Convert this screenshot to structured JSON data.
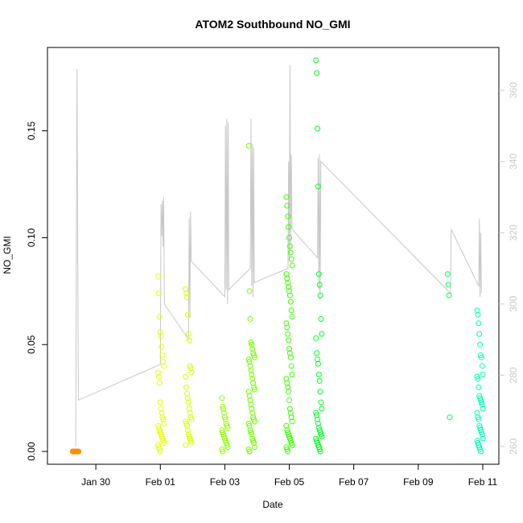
{
  "chart_data": {
    "type": "scatter",
    "title": "ATOM2 Southbound NO_GMI",
    "xlabel": "Date",
    "ylabel": "NO_GMI",
    "x_axis": {
      "type": "date",
      "xlim": [
        "2017-01-28T12:00",
        "2017-02-11T12:00"
      ],
      "ticks": [
        {
          "value": "2017-01-30",
          "label": "Jan 30"
        },
        {
          "value": "2017-02-01",
          "label": "Feb 01"
        },
        {
          "value": "2017-02-03",
          "label": "Feb 03"
        },
        {
          "value": "2017-02-05",
          "label": "Feb 05"
        },
        {
          "value": "2017-02-07",
          "label": "Feb 07"
        },
        {
          "value": "2017-02-09",
          "label": "Feb 09"
        },
        {
          "value": "2017-02-11",
          "label": "Feb 11"
        }
      ]
    },
    "y_axis": {
      "ylim": [
        -0.006,
        0.189
      ],
      "ticks": [
        {
          "value": 0.0,
          "label": "0.00"
        },
        {
          "value": 0.05,
          "label": "0.05"
        },
        {
          "value": 0.1,
          "label": "0.10"
        },
        {
          "value": 0.15,
          "label": "0.15"
        }
      ]
    },
    "y2_axis": {
      "ylim": [
        255,
        372
      ],
      "color": "#c8c8c8",
      "ticks": [
        {
          "value": 260,
          "label": "260"
        },
        {
          "value": 280,
          "label": "280"
        },
        {
          "value": 300,
          "label": "300"
        },
        {
          "value": 320,
          "label": "320"
        },
        {
          "value": 340,
          "label": "340"
        },
        {
          "value": 360,
          "label": "360"
        }
      ]
    },
    "grid": false,
    "legend": "none",
    "colors": {
      "line": "#c8c8c8",
      "axis": "#000000",
      "points_gradient": [
        "#ff8c00",
        "#f0ff00",
        "#3cff00",
        "#00ff3c",
        "#00ffc8"
      ]
    },
    "series": [
      {
        "kind": "points",
        "clusters": [
          {
            "x": "2017-01-29T09:00",
            "color": "#ff8c00",
            "y": [
              0.0,
              0.0,
              0.0,
              0.0,
              0.0,
              0.0,
              0.0,
              0.0,
              0.0,
              0.0
            ]
          },
          {
            "x": "2017-02-01T00:30",
            "color": "#e8ff00",
            "y": [
              0.082,
              0.074,
              0.063,
              0.056,
              0.054,
              0.049,
              0.045,
              0.042,
              0.04,
              0.037,
              0.035,
              0.032,
              0.023,
              0.02,
              0.018,
              0.016,
              0.015,
              0.013,
              0.012,
              0.011,
              0.01,
              0.009,
              0.008,
              0.007,
              0.006,
              0.005,
              0.004,
              0.003,
              0.002,
              0.001,
              0.0
            ]
          },
          {
            "x": "2017-02-01T21:00",
            "color": "#d8ff00",
            "y": [
              0.076,
              0.074,
              0.072,
              0.064,
              0.055,
              0.052,
              0.04,
              0.039,
              0.037,
              0.035,
              0.03,
              0.027,
              0.025,
              0.023,
              0.02,
              0.018,
              0.016,
              0.015,
              0.014,
              0.013,
              0.012,
              0.01,
              0.008,
              0.007,
              0.006,
              0.005,
              0.004,
              0.003
            ]
          },
          {
            "x": "2017-02-03T00:00",
            "color": "#90ff00",
            "y": [
              0.025,
              0.021,
              0.02,
              0.018,
              0.016,
              0.015,
              0.013,
              0.012,
              0.011,
              0.01,
              0.009,
              0.008,
              0.007,
              0.006,
              0.005,
              0.004,
              0.003,
              0.002,
              0.001,
              0.0
            ]
          },
          {
            "x": "2017-02-03T20:00",
            "color": "#70ff00",
            "y": [
              0.143,
              0.075,
              0.062,
              0.051,
              0.05,
              0.048,
              0.046,
              0.045,
              0.044,
              0.043,
              0.042,
              0.04,
              0.038,
              0.036,
              0.034,
              0.032,
              0.03,
              0.029,
              0.028,
              0.026,
              0.024,
              0.022,
              0.02,
              0.018,
              0.016,
              0.015,
              0.014,
              0.013,
              0.012,
              0.01,
              0.009,
              0.008,
              0.006,
              0.005,
              0.004,
              0.002,
              0.001,
              0.0
            ]
          },
          {
            "x": "2017-02-05T00:00",
            "color": "#3cff00",
            "y": [
              0.119,
              0.115,
              0.11,
              0.105,
              0.1,
              0.096,
              0.093,
              0.09,
              0.087,
              0.083,
              0.081,
              0.079,
              0.077,
              0.075,
              0.073,
              0.07,
              0.066,
              0.063,
              0.06,
              0.058,
              0.055,
              0.052,
              0.048,
              0.046,
              0.044,
              0.04,
              0.036,
              0.034,
              0.032,
              0.03,
              0.028,
              0.024,
              0.02,
              0.018,
              0.016,
              0.014,
              0.012,
              0.01,
              0.009,
              0.008,
              0.007,
              0.006,
              0.005,
              0.004,
              0.003,
              0.002,
              0.001,
              0.0
            ]
          },
          {
            "x": "2017-02-05T22:00",
            "color": "#00ff20",
            "y": [
              0.183,
              0.177,
              0.151,
              0.124,
              0.083,
              0.078,
              0.073,
              0.062,
              0.055,
              0.053,
              0.046,
              0.043,
              0.041,
              0.036,
              0.033,
              0.028,
              0.023,
              0.02,
              0.018,
              0.017,
              0.015,
              0.013,
              0.011,
              0.01,
              0.009,
              0.008,
              0.007,
              0.006,
              0.005,
              0.004,
              0.003,
              0.002,
              0.001,
              0.0
            ]
          },
          {
            "x": "2017-02-10T00:00",
            "color": "#00ff60",
            "y": [
              0.083,
              0.078,
              0.073,
              0.016
            ]
          },
          {
            "x": "2017-02-10T22:00",
            "color": "#00ffb4",
            "y": [
              0.066,
              0.064,
              0.06,
              0.055,
              0.05,
              0.045,
              0.044,
              0.04,
              0.036,
              0.035,
              0.034,
              0.03,
              0.026,
              0.025,
              0.024,
              0.023,
              0.022,
              0.02,
              0.018,
              0.016,
              0.015,
              0.012,
              0.011,
              0.01,
              0.009,
              0.008,
              0.006,
              0.005,
              0.004,
              0.003,
              0.002,
              0.001,
              0.0
            ]
          }
        ]
      },
      {
        "kind": "line",
        "axis": "y2",
        "x": [
          "2017-01-29T09:00",
          "2017-01-29T10:00",
          "2017-01-29T11:00",
          "2017-02-01T00:00",
          "2017-02-01T00:30",
          "2017-02-01T01:00",
          "2017-02-01T01:30",
          "2017-02-01T02:00",
          "2017-02-01T02:30",
          "2017-02-01T03:00",
          "2017-02-01T21:00",
          "2017-02-01T21:30",
          "2017-02-01T22:00",
          "2017-02-01T22:30",
          "2017-02-01T23:00",
          "2017-02-03T00:00",
          "2017-02-03T00:30",
          "2017-02-03T01:00",
          "2017-02-03T01:30",
          "2017-02-03T02:00",
          "2017-02-03T02:30",
          "2017-02-03T03:00",
          "2017-02-03T19:00",
          "2017-02-03T19:30",
          "2017-02-03T20:00",
          "2017-02-03T20:30",
          "2017-02-03T21:00",
          "2017-02-03T21:30",
          "2017-02-03T22:00",
          "2017-02-04T23:00",
          "2017-02-04T23:30",
          "2017-02-05T00:00",
          "2017-02-05T00:30",
          "2017-02-05T01:00",
          "2017-02-05T01:30",
          "2017-02-05T02:00",
          "2017-02-05T21:00",
          "2017-02-05T21:30",
          "2017-02-05T22:00",
          "2017-02-05T22:30",
          "2017-02-05T23:00",
          "2017-02-05T23:30",
          "2017-02-10T00:00",
          "2017-02-10T00:30",
          "2017-02-10T21:00",
          "2017-02-10T21:30",
          "2017-02-10T22:00",
          "2017-02-10T22:30",
          "2017-02-10T23:00"
        ],
        "y": [
          260,
          366,
          273,
          283,
          328,
          319,
          329,
          316,
          330,
          300,
          290,
          324,
          296,
          326,
          312,
          302,
          350,
          304,
          352,
          300,
          351,
          304,
          310,
          352,
          305,
          345,
          302,
          344,
          306,
          310,
          340,
          312,
          367,
          315,
          342,
          321,
          313,
          341,
          304,
          342,
          301,
          340,
          303,
          321,
          305,
          324,
          302,
          320,
          303
        ]
      }
    ]
  }
}
